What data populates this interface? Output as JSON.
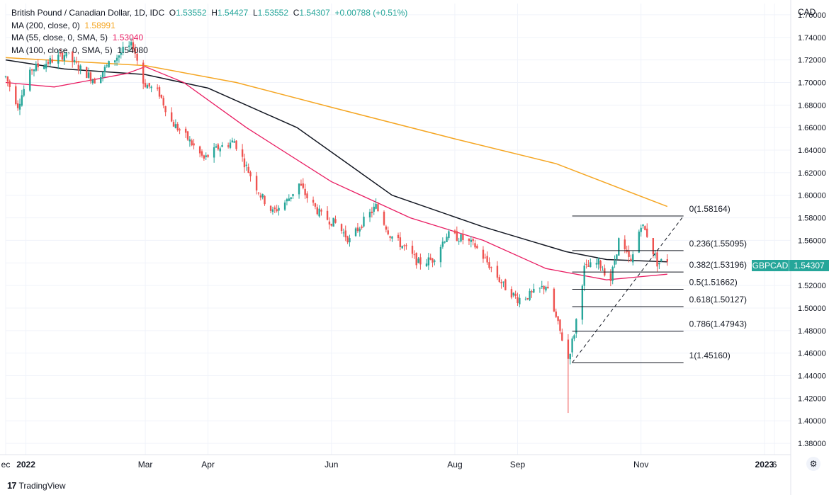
{
  "header": {
    "symbol_desc": "British Pound / Canadian Dollar, 1D, IDC",
    "ohlc": {
      "o_label": "O",
      "o": "1.53552",
      "h_label": "H",
      "h": "1.54427",
      "l_label": "L",
      "l": "1.53552",
      "c_label": "C",
      "c": "1.54307",
      "change": "+0.00788 (+0.51%)"
    },
    "indicators": [
      {
        "label": "MA (200, close, 0)",
        "value": "1.58991",
        "color": "#f5a623"
      },
      {
        "label": "MA (55, close, 0, SMA, 5)",
        "value": "1.53040",
        "color": "#e91e63"
      },
      {
        "label": "MA (100, close, 0, SMA, 5)",
        "value": "1.54080",
        "color": "#131722"
      }
    ]
  },
  "currency": "CAD",
  "current_price": {
    "symbol": "GBPCAD",
    "price": "1.54307",
    "color": "#26a69a"
  },
  "branding": {
    "logo_text": "TradingView"
  },
  "icons": {
    "settings": "gear-icon",
    "logo": "tradingview-logo-icon"
  },
  "colors": {
    "up": "#26a69a",
    "down": "#ef5350",
    "ma200": "#f5a623",
    "ma55": "#e91e63",
    "ma100": "#131722",
    "grid": "#f0f3fa"
  },
  "chart_data": {
    "type": "candlestick",
    "ylim": [
      1.37,
      1.77
    ],
    "y_ticks": [
      "1.76000",
      "1.74000",
      "1.72000",
      "1.70000",
      "1.68000",
      "1.66000",
      "1.64000",
      "1.62000",
      "1.60000",
      "1.58000",
      "1.56000",
      "1.54000",
      "1.52000",
      "1.50000",
      "1.48000",
      "1.46000",
      "1.44000",
      "1.42000",
      "1.40000",
      "1.38000"
    ],
    "x_range": [
      "2021-12-22",
      "2023-01-14"
    ],
    "x_ticks": [
      {
        "label": "ec",
        "date": "2021-12-22"
      },
      {
        "label": "2022",
        "date": "2022-01-01"
      },
      {
        "label": "Mar",
        "date": "2022-03-01"
      },
      {
        "label": "Apr",
        "date": "2022-04-01"
      },
      {
        "label": "Jun",
        "date": "2022-06-01"
      },
      {
        "label": "Aug",
        "date": "2022-08-01"
      },
      {
        "label": "Sep",
        "date": "2022-09-01"
      },
      {
        "label": "Nov",
        "date": "2022-11-01"
      },
      {
        "label": "2023",
        "date": "2023-01-01"
      },
      {
        "label": "6",
        "date": "2023-01-06"
      }
    ],
    "close_path": [
      [
        "2021-12-22",
        1.705
      ],
      [
        "2021-12-28",
        1.68
      ],
      [
        "2022-01-04",
        1.712
      ],
      [
        "2022-01-12",
        1.718
      ],
      [
        "2022-01-20",
        1.725
      ],
      [
        "2022-01-28",
        1.712
      ],
      [
        "2022-02-04",
        1.702
      ],
      [
        "2022-02-11",
        1.716
      ],
      [
        "2022-02-18",
        1.728
      ],
      [
        "2022-02-23",
        1.733
      ],
      [
        "2022-02-28",
        1.7
      ],
      [
        "2022-03-08",
        1.69
      ],
      [
        "2022-03-14",
        1.665
      ],
      [
        "2022-03-22",
        1.65
      ],
      [
        "2022-03-30",
        1.632
      ],
      [
        "2022-04-06",
        1.642
      ],
      [
        "2022-04-14",
        1.648
      ],
      [
        "2022-04-20",
        1.625
      ],
      [
        "2022-04-27",
        1.6
      ],
      [
        "2022-05-03",
        1.585
      ],
      [
        "2022-05-10",
        1.595
      ],
      [
        "2022-05-16",
        1.61
      ],
      [
        "2022-05-20",
        1.598
      ],
      [
        "2022-05-27",
        1.582
      ],
      [
        "2022-06-03",
        1.575
      ],
      [
        "2022-06-10",
        1.56
      ],
      [
        "2022-06-16",
        1.575
      ],
      [
        "2022-06-23",
        1.59
      ],
      [
        "2022-06-30",
        1.565
      ],
      [
        "2022-07-08",
        1.552
      ],
      [
        "2022-07-14",
        1.54
      ],
      [
        "2022-07-21",
        1.543
      ],
      [
        "2022-07-28",
        1.565
      ],
      [
        "2022-08-04",
        1.562
      ],
      [
        "2022-08-11",
        1.555
      ],
      [
        "2022-08-18",
        1.538
      ],
      [
        "2022-08-25",
        1.52
      ],
      [
        "2022-09-01",
        1.508
      ],
      [
        "2022-09-08",
        1.512
      ],
      [
        "2022-09-15",
        1.52
      ],
      [
        "2022-09-21",
        1.485
      ],
      [
        "2022-09-26",
        1.455
      ],
      [
        "2022-09-29",
        1.478
      ],
      [
        "2022-10-04",
        1.535
      ],
      [
        "2022-10-11",
        1.54
      ],
      [
        "2022-10-17",
        1.525
      ],
      [
        "2022-10-21",
        1.56
      ],
      [
        "2022-10-27",
        1.54
      ],
      [
        "2022-11-01",
        1.575
      ],
      [
        "2022-11-04",
        1.565
      ],
      [
        "2022-11-09",
        1.54
      ],
      [
        "2022-11-14",
        1.543
      ]
    ],
    "ma200": [
      [
        "2021-12-22",
        1.722
      ],
      [
        "2022-03-01",
        1.715
      ],
      [
        "2022-04-15",
        1.7
      ],
      [
        "2022-06-01",
        1.678
      ],
      [
        "2022-08-01",
        1.65
      ],
      [
        "2022-09-20",
        1.628
      ],
      [
        "2022-11-14",
        1.59
      ]
    ],
    "ma55": [
      [
        "2021-12-22",
        1.7
      ],
      [
        "2022-01-15",
        1.696
      ],
      [
        "2022-02-20",
        1.708
      ],
      [
        "2022-03-01",
        1.714
      ],
      [
        "2022-03-20",
        1.7
      ],
      [
        "2022-04-20",
        1.66
      ],
      [
        "2022-06-01",
        1.612
      ],
      [
        "2022-07-10",
        1.58
      ],
      [
        "2022-08-15",
        1.56
      ],
      [
        "2022-09-15",
        1.535
      ],
      [
        "2022-10-15",
        1.525
      ],
      [
        "2022-11-14",
        1.53
      ]
    ],
    "ma100": [
      [
        "2021-12-22",
        1.72
      ],
      [
        "2022-01-20",
        1.712
      ],
      [
        "2022-03-01",
        1.707
      ],
      [
        "2022-04-01",
        1.695
      ],
      [
        "2022-05-15",
        1.66
      ],
      [
        "2022-07-01",
        1.6
      ],
      [
        "2022-08-15",
        1.572
      ],
      [
        "2022-09-25",
        1.55
      ],
      [
        "2022-10-15",
        1.543
      ],
      [
        "2022-11-14",
        1.541
      ]
    ],
    "fibonacci": {
      "start": [
        "2022-09-28",
        1.4516
      ],
      "end": [
        "2022-11-22",
        1.58164
      ],
      "levels": [
        {
          "label": "0(1.58164)",
          "price": 1.58164
        },
        {
          "label": "0.236(1.55095)",
          "price": 1.55095
        },
        {
          "label": "0.382(1.53196)",
          "price": 1.53196
        },
        {
          "label": "0.5(1.51662)",
          "price": 1.51662
        },
        {
          "label": "0.618(1.50127)",
          "price": 1.50127
        },
        {
          "label": "0.786(1.47943)",
          "price": 1.47943
        },
        {
          "label": "1(1.45160)",
          "price": 1.4516
        }
      ]
    }
  }
}
